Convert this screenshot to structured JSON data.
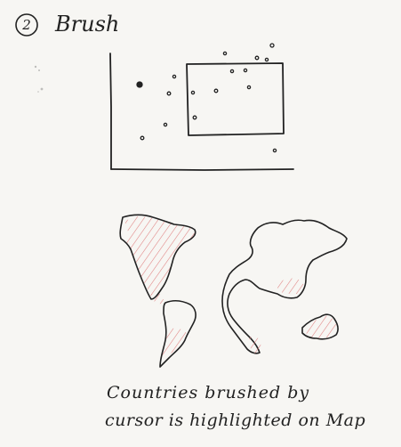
{
  "header": {
    "step_number": "2",
    "title": "Brush"
  },
  "caption": {
    "line1": "Countries brushed by",
    "line2": "cursor is highlighted on Map"
  },
  "colors": {
    "ink": "#222222",
    "highlight": "#e08080",
    "paper": "#f7f6f3"
  }
}
